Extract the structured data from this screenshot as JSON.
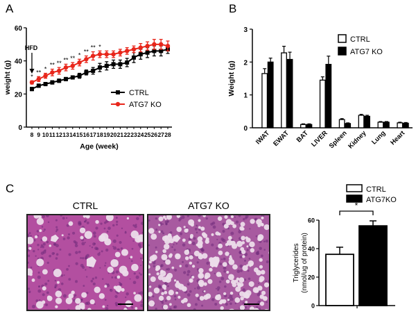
{
  "panels": {
    "a": "A",
    "b": "B",
    "c": "C"
  },
  "colors": {
    "ctrl": "#000000",
    "ko": "#e8261b",
    "tissue_ctrl": "#b34fa0",
    "tissue_ko": "#a85aa0",
    "lumen": "#ecdcea"
  },
  "chart_data": [
    {
      "id": "A",
      "type": "line",
      "xlabel": "Age (week)",
      "ylabel": "weight (g)",
      "x": [
        8,
        9,
        10,
        11,
        12,
        13,
        14,
        15,
        16,
        17,
        18,
        19,
        20,
        21,
        22,
        23,
        24,
        25,
        26,
        27,
        28
      ],
      "ylim": [
        0,
        60
      ],
      "yticks": [
        "0",
        "20",
        "40",
        "60"
      ],
      "annotation": "HFD",
      "significance": [
        "*",
        "**",
        "*",
        "**",
        "**",
        "**",
        "**",
        "*",
        "**",
        "**",
        "*",
        "",
        "",
        "",
        "",
        "",
        "",
        "",
        "",
        "",
        ""
      ],
      "series": [
        {
          "name": "CTRL",
          "values": [
            23,
            25,
            26,
            27,
            28,
            29,
            30,
            31,
            33,
            34,
            36,
            37,
            38,
            38,
            39,
            42,
            44,
            45,
            46,
            46,
            47
          ],
          "errors": [
            1,
            1,
            1,
            1,
            1,
            1,
            1,
            1.5,
            1.5,
            2,
            2.5,
            2.5,
            2.5,
            2.5,
            2.5,
            3,
            3,
            3,
            3,
            3,
            2.5
          ]
        },
        {
          "name": "ATG7 KO",
          "values": [
            27,
            29,
            31,
            33,
            34,
            36,
            37,
            39,
            41,
            43,
            44,
            44,
            44,
            45,
            46,
            47,
            48,
            49,
            50,
            50,
            49
          ],
          "errors": [
            1,
            1.5,
            1.5,
            2,
            2,
            2,
            2,
            2,
            2,
            2.5,
            2,
            2,
            2,
            2,
            2,
            2,
            2.5,
            2.5,
            3,
            3,
            3
          ]
        }
      ]
    },
    {
      "id": "B",
      "type": "bar",
      "ylabel": "Weight (g)",
      "ylim": [
        0,
        3
      ],
      "yticks": [
        "0",
        "1",
        "2",
        "3"
      ],
      "categories": [
        "IWAT",
        "EWAT",
        "BAT",
        "LIVER",
        "Spleen",
        "Kidney",
        "Lung",
        "Heart"
      ],
      "series": [
        {
          "name": "CTRL",
          "values": [
            1.65,
            2.28,
            0.1,
            1.45,
            0.25,
            0.38,
            0.17,
            0.15
          ],
          "errors": [
            0.15,
            0.2,
            0.02,
            0.1,
            0.03,
            0.03,
            0.02,
            0.02
          ]
        },
        {
          "name": "ATG7 KO",
          "values": [
            2.0,
            2.08,
            0.1,
            1.93,
            0.13,
            0.35,
            0.17,
            0.14
          ],
          "errors": [
            0.12,
            0.22,
            0.02,
            0.25,
            0.02,
            0.03,
            0.02,
            0.02
          ]
        }
      ]
    },
    {
      "id": "C",
      "type": "bar",
      "ylabel": "Triglycerides",
      "ylabel2": "(nmol/ug of protein)",
      "ylim": [
        0,
        60
      ],
      "yticks": [
        "0",
        "20",
        "40",
        "60"
      ],
      "categories": [
        "CTRL",
        "ATG7KO"
      ],
      "values": [
        36,
        56
      ],
      "errors": [
        5,
        3.5
      ],
      "significance": "*"
    }
  ],
  "micrographs": {
    "ctrl_label": "CTRL",
    "ko_label": "ATG7 KO"
  }
}
